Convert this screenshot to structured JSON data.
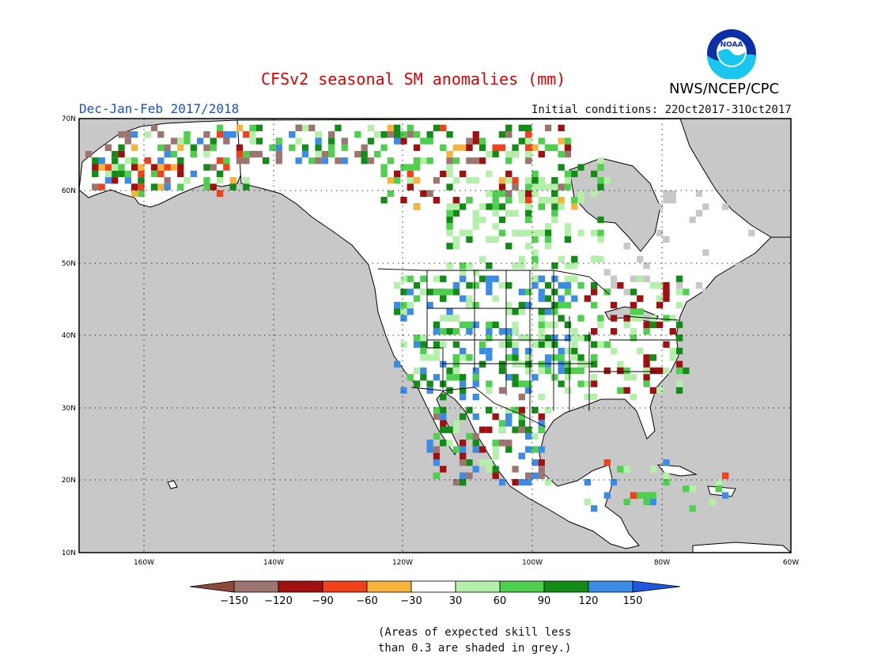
{
  "header": {
    "title": "CFSv2 seasonal SM anomalies (mm)",
    "period": "Dec-Jan-Feb 2017/2018",
    "initial_conditions": "Initial conditions: 22Oct2017-31Oct2017",
    "agency": "NWS/NCEP/CPC",
    "logo_text": "NOAA"
  },
  "map": {
    "lat_labels": [
      "70N",
      "60N",
      "50N",
      "40N",
      "30N",
      "20N",
      "10N"
    ],
    "lon_labels": [
      "160W",
      "140W",
      "120W",
      "100W",
      "80W",
      "60W"
    ],
    "grey_meaning": "low-skill"
  },
  "legend": {
    "tick_labels": [
      "-150",
      "-120",
      "-90",
      "-60",
      "-30",
      "30",
      "60",
      "90",
      "120",
      "150"
    ],
    "colors": [
      "#8b4a3c",
      "#9c7470",
      "#a01010",
      "#f0401c",
      "#f7b43c",
      "#ffffff",
      "#b4f0aa",
      "#4ed04e",
      "#128c16",
      "#3c8ce6",
      "#1e58e0"
    ]
  },
  "note": {
    "line1": "(Areas of expected skill less",
    "line2": "than 0.3 are shaded in grey.)"
  }
}
